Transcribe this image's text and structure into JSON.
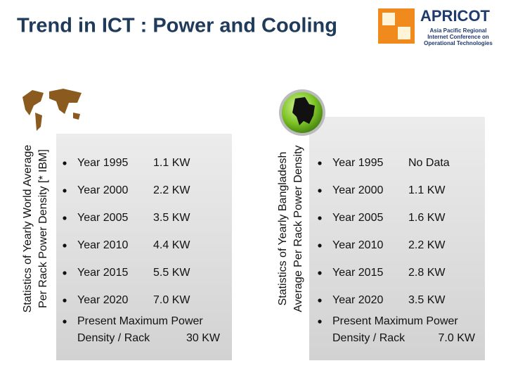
{
  "title": "Trend in ICT : Power and Cooling",
  "logo": {
    "name": "APRICOT",
    "subtitle": [
      "Asia Pacific Regional",
      "Internet Conference on",
      "Operational Technologies"
    ]
  },
  "panels": [
    {
      "side_label": [
        "Statistics of Yearly World Average",
        "Per Rack Power Density [* IBM]"
      ],
      "rows": [
        [
          "Year 1995",
          "1.1 KW"
        ],
        [
          "Year 2000",
          "2.2 KW"
        ],
        [
          "Year 2005",
          "3.5 KW"
        ],
        [
          "Year 2010",
          "4.4 KW"
        ],
        [
          "Year 2015",
          "5.5 KW"
        ],
        [
          "Year 2020",
          "7.0 KW"
        ]
      ],
      "note": {
        "line1": "Present Maximum Power",
        "line2": "Density / Rack",
        "value": "30 KW"
      }
    },
    {
      "side_label": [
        "Statistics of Yearly Bangladesh",
        "Average Per Rack Power Density"
      ],
      "rows": [
        [
          "Year 1995",
          "No Data"
        ],
        [
          "Year 2000",
          "1.1 KW"
        ],
        [
          "Year 2005",
          "1.6 KW"
        ],
        [
          "Year 2010",
          "2.2 KW"
        ],
        [
          "Year 2015",
          "2.8 KW"
        ],
        [
          "Year 2020",
          "3.5 KW"
        ]
      ],
      "note": {
        "line1": "Present Maximum Power",
        "line2": "Density / Rack",
        "value": "7.0 KW"
      }
    }
  ]
}
